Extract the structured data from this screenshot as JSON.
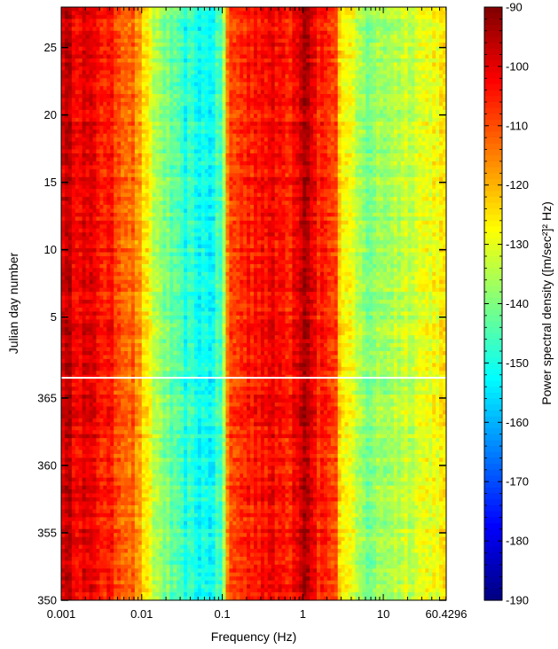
{
  "chart_data": {
    "type": "heatmap",
    "title": "",
    "xlabel": "Frequency (Hz)",
    "ylabel": "Julian day number",
    "colorbar_label": "Power spectral density ([m/sec²]² Hz)",
    "x_scale": "log",
    "xlim": [
      0.001,
      60.4296
    ],
    "x_ticks": [
      {
        "value": 0.001,
        "label": "0.001"
      },
      {
        "value": 0.01,
        "label": "0.01"
      },
      {
        "value": 0.1,
        "label": "0.1"
      },
      {
        "value": 1,
        "label": "1"
      },
      {
        "value": 10,
        "label": "10"
      },
      {
        "value": 60.4296,
        "label": "60.4296"
      }
    ],
    "y_ticks": [
      {
        "day": "350",
        "label": "350"
      },
      {
        "day": "355",
        "label": "355"
      },
      {
        "day": "360",
        "label": "360"
      },
      {
        "day": "365",
        "label": "365"
      },
      {
        "day": "5",
        "label": "5"
      },
      {
        "day": "10",
        "label": "10"
      },
      {
        "day": "15",
        "label": "15"
      },
      {
        "day": "20",
        "label": "20"
      },
      {
        "day": "25",
        "label": "25"
      }
    ],
    "y_range_days": [
      "350",
      "28"
    ],
    "colorbar": {
      "min": -190,
      "max": -90,
      "ticks": [
        -90,
        -100,
        -110,
        -120,
        -130,
        -140,
        -150,
        -160,
        -170,
        -180,
        -190
      ],
      "colormap": [
        "#00007f",
        "#0000ff",
        "#007fff",
        "#00ffff",
        "#7fff7f",
        "#ffff00",
        "#ff7f00",
        "#ff0000",
        "#7f0000"
      ]
    },
    "psd_profile_db": [
      {
        "f": 0.001,
        "db": -97
      },
      {
        "f": 0.003,
        "db": -103
      },
      {
        "f": 0.008,
        "db": -113
      },
      {
        "f": 0.013,
        "db": -132
      },
      {
        "f": 0.03,
        "db": -148
      },
      {
        "f": 0.07,
        "db": -152
      },
      {
        "f": 0.1,
        "db": -145
      },
      {
        "f": 0.12,
        "db": -110
      },
      {
        "f": 0.3,
        "db": -102
      },
      {
        "f": 0.7,
        "db": -104
      },
      {
        "f": 1.1,
        "db": -92
      },
      {
        "f": 1.5,
        "db": -104
      },
      {
        "f": 2.5,
        "db": -108
      },
      {
        "f": 3,
        "db": -125
      },
      {
        "f": 6,
        "db": -140
      },
      {
        "f": 15,
        "db": -134
      },
      {
        "f": 60.4296,
        "db": -126
      }
    ],
    "data_gap_day": "366"
  }
}
